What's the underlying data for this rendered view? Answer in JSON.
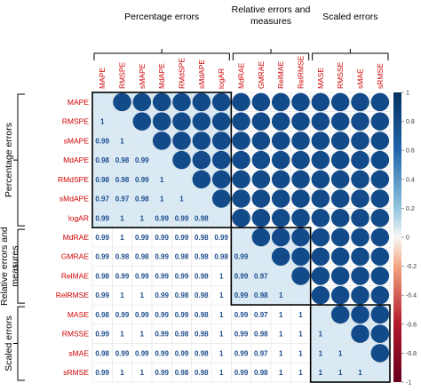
{
  "chart_data": {
    "type": "heatmap",
    "subtype": "correlation-matrix",
    "labels": [
      "MAPE",
      "RMSPE",
      "sMAPE",
      "MdAPE",
      "RMdSPE",
      "sMdAPE",
      "logAR",
      "MdRAE",
      "GMRAE",
      "RelMAE",
      "RelRMSE",
      "MASE",
      "RMSSE",
      "sMAE",
      "sRMSE"
    ],
    "lower_triangle_values": [
      [],
      [
        "1"
      ],
      [
        "0.99",
        "1"
      ],
      [
        "0.98",
        "0.98",
        "0.99"
      ],
      [
        "0.98",
        "0.98",
        "0.99",
        "1"
      ],
      [
        "0.97",
        "0.97",
        "0.98",
        "1",
        "1"
      ],
      [
        "0.99",
        "1",
        "1",
        "0.99",
        "0.99",
        "0.98"
      ],
      [
        "0.99",
        "1",
        "0.99",
        "0.99",
        "0.99",
        "0.98",
        "0.99"
      ],
      [
        "0.99",
        "0.98",
        "0.98",
        "0.99",
        "0.98",
        "0.98",
        "0.98",
        "0.99"
      ],
      [
        "0.98",
        "0.99",
        "0.99",
        "0.99",
        "0.99",
        "0.98",
        "1",
        "0.99",
        "0.97"
      ],
      [
        "0.99",
        "1",
        "1",
        "0.99",
        "0.98",
        "0.98",
        "1",
        "0.99",
        "0.98",
        "1"
      ],
      [
        "0.98",
        "0.99",
        "0.99",
        "0.99",
        "0.99",
        "0.98",
        "1",
        "0.99",
        "0.97",
        "1",
        "1"
      ],
      [
        "0.99",
        "1",
        "1",
        "0.99",
        "0.98",
        "0.98",
        "1",
        "0.99",
        "0.98",
        "1",
        "1",
        "1"
      ],
      [
        "0.98",
        "0.99",
        "0.99",
        "0.99",
        "0.99",
        "0.98",
        "1",
        "0.99",
        "0.97",
        "1",
        "1",
        "1",
        "1"
      ],
      [
        "0.99",
        "1",
        "1",
        "0.99",
        "0.98",
        "0.98",
        "1",
        "0.99",
        "0.98",
        "1",
        "1",
        "1",
        "1",
        "1"
      ]
    ],
    "upper_triangle": "filled dark-blue circles",
    "groups": [
      {
        "name": "Percentage errors",
        "start": 0,
        "end": 6
      },
      {
        "name": "Relative errors and measures",
        "start": 7,
        "end": 10
      },
      {
        "name": "Scaled errors",
        "start": 11,
        "end": 14
      }
    ],
    "colorbar": {
      "ticks": [
        "1",
        "0.8",
        "0.6",
        "0.4",
        "0.2",
        "0",
        "-0.2",
        "-0.4",
        "-0.6",
        "-0.8",
        "-1"
      ],
      "range": [
        -1,
        1
      ],
      "colors": {
        "high": "#053061",
        "mid": "#f7f7f7",
        "low": "#67001f"
      }
    },
    "colors": {
      "label": "#d00000",
      "number": "#1a4a8a",
      "circle": "#134b8a",
      "highlight": "#d9eaf5"
    }
  }
}
